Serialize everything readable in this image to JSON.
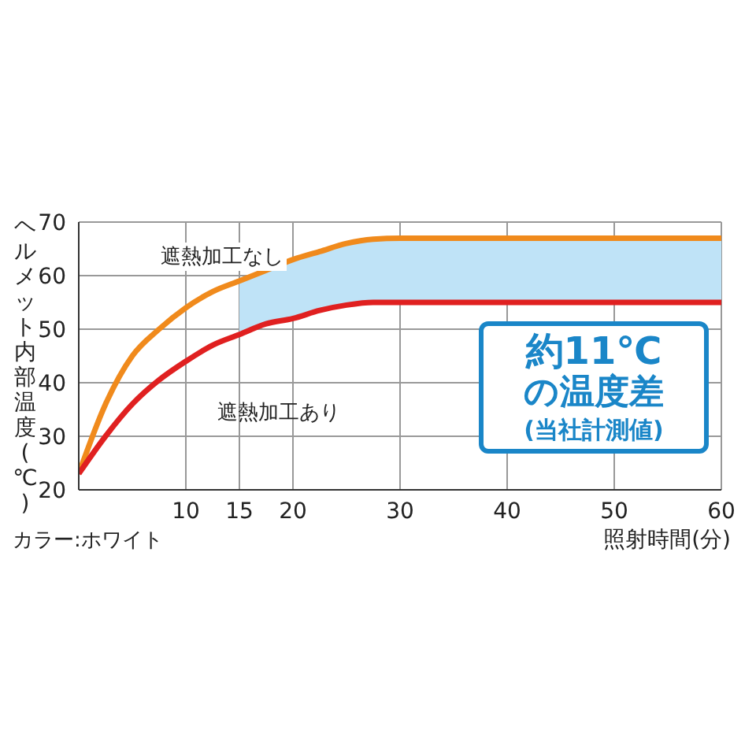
{
  "chart_data": {
    "type": "line",
    "xlabel": "照射時間(分)",
    "ylabel": "ヘルメット内部温度(℃)",
    "x": [
      0,
      2.5,
      5,
      7.5,
      10,
      12.5,
      15,
      17.5,
      20,
      22.5,
      25,
      27.5,
      30,
      40,
      50,
      60
    ],
    "series": [
      {
        "color": "#f08a1c",
        "values": [
          23,
          36,
          45,
          50,
          54,
          57,
          59,
          61,
          63,
          64.5,
          66,
          66.8,
          67,
          67,
          67,
          67
        ],
        "lower": [
          null,
          null,
          null,
          null,
          null,
          null,
          49,
          51,
          52,
          53.5,
          54.5,
          55,
          55,
          55,
          55,
          55
        ],
        "upper": [
          null,
          null,
          null,
          null,
          null,
          null,
          59,
          61,
          63,
          64.5,
          66,
          66.8,
          67,
          67,
          67,
          67
        ]
      },
      {
        "color": "#e02020",
        "values": [
          23,
          30,
          36,
          40.5,
          44,
          47,
          49,
          51,
          52,
          53.5,
          54.5,
          55,
          55,
          55,
          55,
          55
        ]
      }
    ],
    "xlim": [
      0,
      60
    ],
    "xticks": [
      {
        "value": 0,
        "label": null
      },
      10,
      15,
      20,
      30,
      40,
      50,
      60
    ],
    "ylim": [
      20,
      70
    ],
    "yticks": [
      20,
      30,
      40,
      50,
      60,
      70
    ],
    "grid": true,
    "marker": "none",
    "line_style": "solid",
    "annotations": [
      "遮熱加工なし",
      "遮熱加工あり",
      "約11℃",
      "の温度差",
      "(当社計測値)",
      "カラー:ホワイト"
    ]
  }
}
